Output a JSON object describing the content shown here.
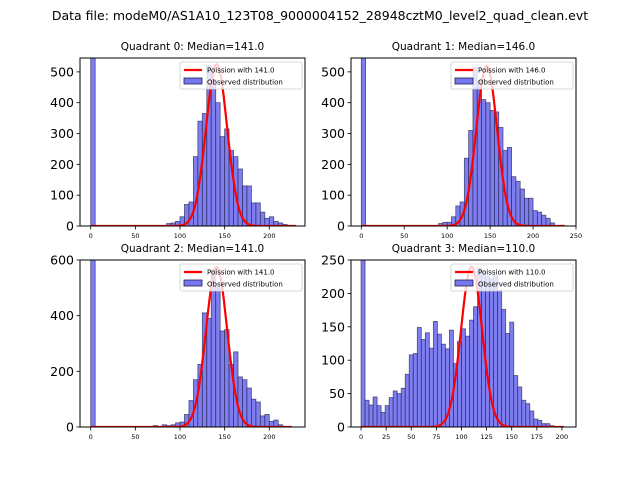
{
  "figure_title": "Data file: modeM0/AS1A10_123T08_9000004152_28948cztM0_level2_quad_clean.evt",
  "colors": {
    "bar_fill": "#7777f0",
    "bar_edge": "#20204a",
    "curve": "#ff0000"
  },
  "chart_data": [
    {
      "type": "bar",
      "title": "Quadrant 0: Median=141.0",
      "bin_width": 5,
      "xlim": [
        -12,
        240
      ],
      "ylim": [
        0,
        545
      ],
      "xticks": [
        0,
        50,
        100,
        150,
        200
      ],
      "yticks": [
        0,
        100,
        200,
        300,
        400,
        500
      ],
      "legend": [
        "Poission with 141.0",
        "Observed distribution"
      ],
      "legend_position": "top-right",
      "poisson_mean": 141.0,
      "poisson_peak": 525,
      "curve_xmax": 230,
      "bins": [
        {
          "x": 0,
          "v": 545
        },
        {
          "x": 85,
          "v": 8
        },
        {
          "x": 90,
          "v": 10
        },
        {
          "x": 95,
          "v": 15
        },
        {
          "x": 100,
          "v": 30
        },
        {
          "x": 105,
          "v": 70
        },
        {
          "x": 110,
          "v": 78
        },
        {
          "x": 115,
          "v": 225
        },
        {
          "x": 120,
          "v": 340
        },
        {
          "x": 125,
          "v": 365
        },
        {
          "x": 130,
          "v": 520
        },
        {
          "x": 135,
          "v": 475
        },
        {
          "x": 140,
          "v": 400
        },
        {
          "x": 145,
          "v": 290
        },
        {
          "x": 150,
          "v": 315
        },
        {
          "x": 155,
          "v": 245
        },
        {
          "x": 160,
          "v": 225
        },
        {
          "x": 165,
          "v": 185
        },
        {
          "x": 170,
          "v": 130
        },
        {
          "x": 175,
          "v": 130
        },
        {
          "x": 180,
          "v": 75
        },
        {
          "x": 185,
          "v": 75
        },
        {
          "x": 190,
          "v": 45
        },
        {
          "x": 195,
          "v": 25
        },
        {
          "x": 200,
          "v": 30
        },
        {
          "x": 205,
          "v": 15
        },
        {
          "x": 210,
          "v": 10
        },
        {
          "x": 215,
          "v": 5
        }
      ]
    },
    {
      "type": "bar",
      "title": "Quadrant 1: Median=146.0",
      "bin_width": 5,
      "xlim": [
        -12,
        250
      ],
      "ylim": [
        0,
        545
      ],
      "xticks": [
        0,
        50,
        100,
        150,
        200,
        250
      ],
      "yticks": [
        0,
        100,
        200,
        300,
        400,
        500
      ],
      "legend": [
        "Poission with 146.0",
        "Observed distribution"
      ],
      "legend_position": "top-right",
      "poisson_mean": 146.0,
      "poisson_peak": 520,
      "curve_xmax": 237,
      "bins": [
        {
          "x": 0,
          "v": 545
        },
        {
          "x": 90,
          "v": 8
        },
        {
          "x": 95,
          "v": 12
        },
        {
          "x": 100,
          "v": 12
        },
        {
          "x": 105,
          "v": 30
        },
        {
          "x": 110,
          "v": 65
        },
        {
          "x": 115,
          "v": 78
        },
        {
          "x": 120,
          "v": 220
        },
        {
          "x": 125,
          "v": 310
        },
        {
          "x": 130,
          "v": 515
        },
        {
          "x": 135,
          "v": 470
        },
        {
          "x": 140,
          "v": 410
        },
        {
          "x": 145,
          "v": 400
        },
        {
          "x": 150,
          "v": 375
        },
        {
          "x": 155,
          "v": 370
        },
        {
          "x": 160,
          "v": 320
        },
        {
          "x": 165,
          "v": 245
        },
        {
          "x": 170,
          "v": 255
        },
        {
          "x": 175,
          "v": 160
        },
        {
          "x": 180,
          "v": 145
        },
        {
          "x": 185,
          "v": 120
        },
        {
          "x": 190,
          "v": 90
        },
        {
          "x": 195,
          "v": 90
        },
        {
          "x": 200,
          "v": 50
        },
        {
          "x": 205,
          "v": 45
        },
        {
          "x": 210,
          "v": 35
        },
        {
          "x": 215,
          "v": 25
        },
        {
          "x": 220,
          "v": 10
        }
      ]
    },
    {
      "type": "bar",
      "title": "Quadrant 2: Median=141.0",
      "bin_width": 5,
      "xlim": [
        -12,
        240
      ],
      "ylim": [
        0,
        600
      ],
      "xticks": [
        0,
        50,
        100,
        150,
        200
      ],
      "yticks": [
        0,
        200,
        400,
        600
      ],
      "legend": [
        "Poission with 141.0",
        "Observed distribution"
      ],
      "legend_position": "top-right",
      "poisson_mean": 141.0,
      "poisson_peak": 575,
      "curve_xmax": 225,
      "bins": [
        {
          "x": 0,
          "v": 600
        },
        {
          "x": 70,
          "v": 5
        },
        {
          "x": 80,
          "v": 8
        },
        {
          "x": 85,
          "v": 5
        },
        {
          "x": 90,
          "v": 8
        },
        {
          "x": 95,
          "v": 15
        },
        {
          "x": 100,
          "v": 18
        },
        {
          "x": 105,
          "v": 45
        },
        {
          "x": 110,
          "v": 95
        },
        {
          "x": 115,
          "v": 170
        },
        {
          "x": 120,
          "v": 225
        },
        {
          "x": 125,
          "v": 410
        },
        {
          "x": 130,
          "v": 390
        },
        {
          "x": 135,
          "v": 565
        },
        {
          "x": 140,
          "v": 500
        },
        {
          "x": 145,
          "v": 345
        },
        {
          "x": 150,
          "v": 350
        },
        {
          "x": 155,
          "v": 225
        },
        {
          "x": 160,
          "v": 270
        },
        {
          "x": 165,
          "v": 180
        },
        {
          "x": 170,
          "v": 170
        },
        {
          "x": 175,
          "v": 140
        },
        {
          "x": 180,
          "v": 100
        },
        {
          "x": 185,
          "v": 90
        },
        {
          "x": 190,
          "v": 40
        },
        {
          "x": 195,
          "v": 45
        },
        {
          "x": 200,
          "v": 20
        },
        {
          "x": 205,
          "v": 25
        },
        {
          "x": 210,
          "v": 8
        }
      ]
    },
    {
      "type": "bar",
      "title": "Quadrant 3: Median=110.0",
      "bin_width": 4,
      "xlim": [
        -10,
        214
      ],
      "ylim": [
        0,
        250
      ],
      "xticks": [
        0,
        25,
        50,
        75,
        100,
        125,
        150,
        175,
        200
      ],
      "yticks": [
        0,
        50,
        100,
        150,
        200,
        250
      ],
      "legend": [
        "Poission with 110.0",
        "Observed distribution"
      ],
      "legend_position": "top-right",
      "poisson_mean": 110.0,
      "poisson_peak": 240,
      "curve_xmax": 202,
      "bins": [
        {
          "x": 0,
          "v": 250
        },
        {
          "x": 4,
          "v": 40
        },
        {
          "x": 8,
          "v": 33
        },
        {
          "x": 12,
          "v": 45
        },
        {
          "x": 16,
          "v": 32
        },
        {
          "x": 20,
          "v": 22
        },
        {
          "x": 24,
          "v": 32
        },
        {
          "x": 28,
          "v": 44
        },
        {
          "x": 32,
          "v": 54
        },
        {
          "x": 36,
          "v": 50
        },
        {
          "x": 40,
          "v": 58
        },
        {
          "x": 44,
          "v": 79
        },
        {
          "x": 48,
          "v": 108
        },
        {
          "x": 52,
          "v": 110
        },
        {
          "x": 56,
          "v": 149
        },
        {
          "x": 60,
          "v": 131
        },
        {
          "x": 64,
          "v": 141
        },
        {
          "x": 68,
          "v": 118
        },
        {
          "x": 72,
          "v": 158
        },
        {
          "x": 76,
          "v": 139
        },
        {
          "x": 80,
          "v": 124
        },
        {
          "x": 84,
          "v": 117
        },
        {
          "x": 88,
          "v": 145
        },
        {
          "x": 92,
          "v": 95
        },
        {
          "x": 96,
          "v": 128
        },
        {
          "x": 100,
          "v": 147
        },
        {
          "x": 104,
          "v": 136
        },
        {
          "x": 108,
          "v": 160
        },
        {
          "x": 112,
          "v": 180
        },
        {
          "x": 116,
          "v": 238
        },
        {
          "x": 120,
          "v": 232
        },
        {
          "x": 124,
          "v": 226
        },
        {
          "x": 128,
          "v": 222
        },
        {
          "x": 132,
          "v": 227
        },
        {
          "x": 136,
          "v": 205
        },
        {
          "x": 140,
          "v": 176
        },
        {
          "x": 144,
          "v": 140
        },
        {
          "x": 148,
          "v": 157
        },
        {
          "x": 152,
          "v": 77
        },
        {
          "x": 156,
          "v": 60
        },
        {
          "x": 160,
          "v": 40
        },
        {
          "x": 164,
          "v": 35
        },
        {
          "x": 168,
          "v": 24
        },
        {
          "x": 172,
          "v": 12
        },
        {
          "x": 176,
          "v": 10
        },
        {
          "x": 180,
          "v": 5
        },
        {
          "x": 184,
          "v": 5
        },
        {
          "x": 188,
          "v": 2
        }
      ]
    }
  ]
}
